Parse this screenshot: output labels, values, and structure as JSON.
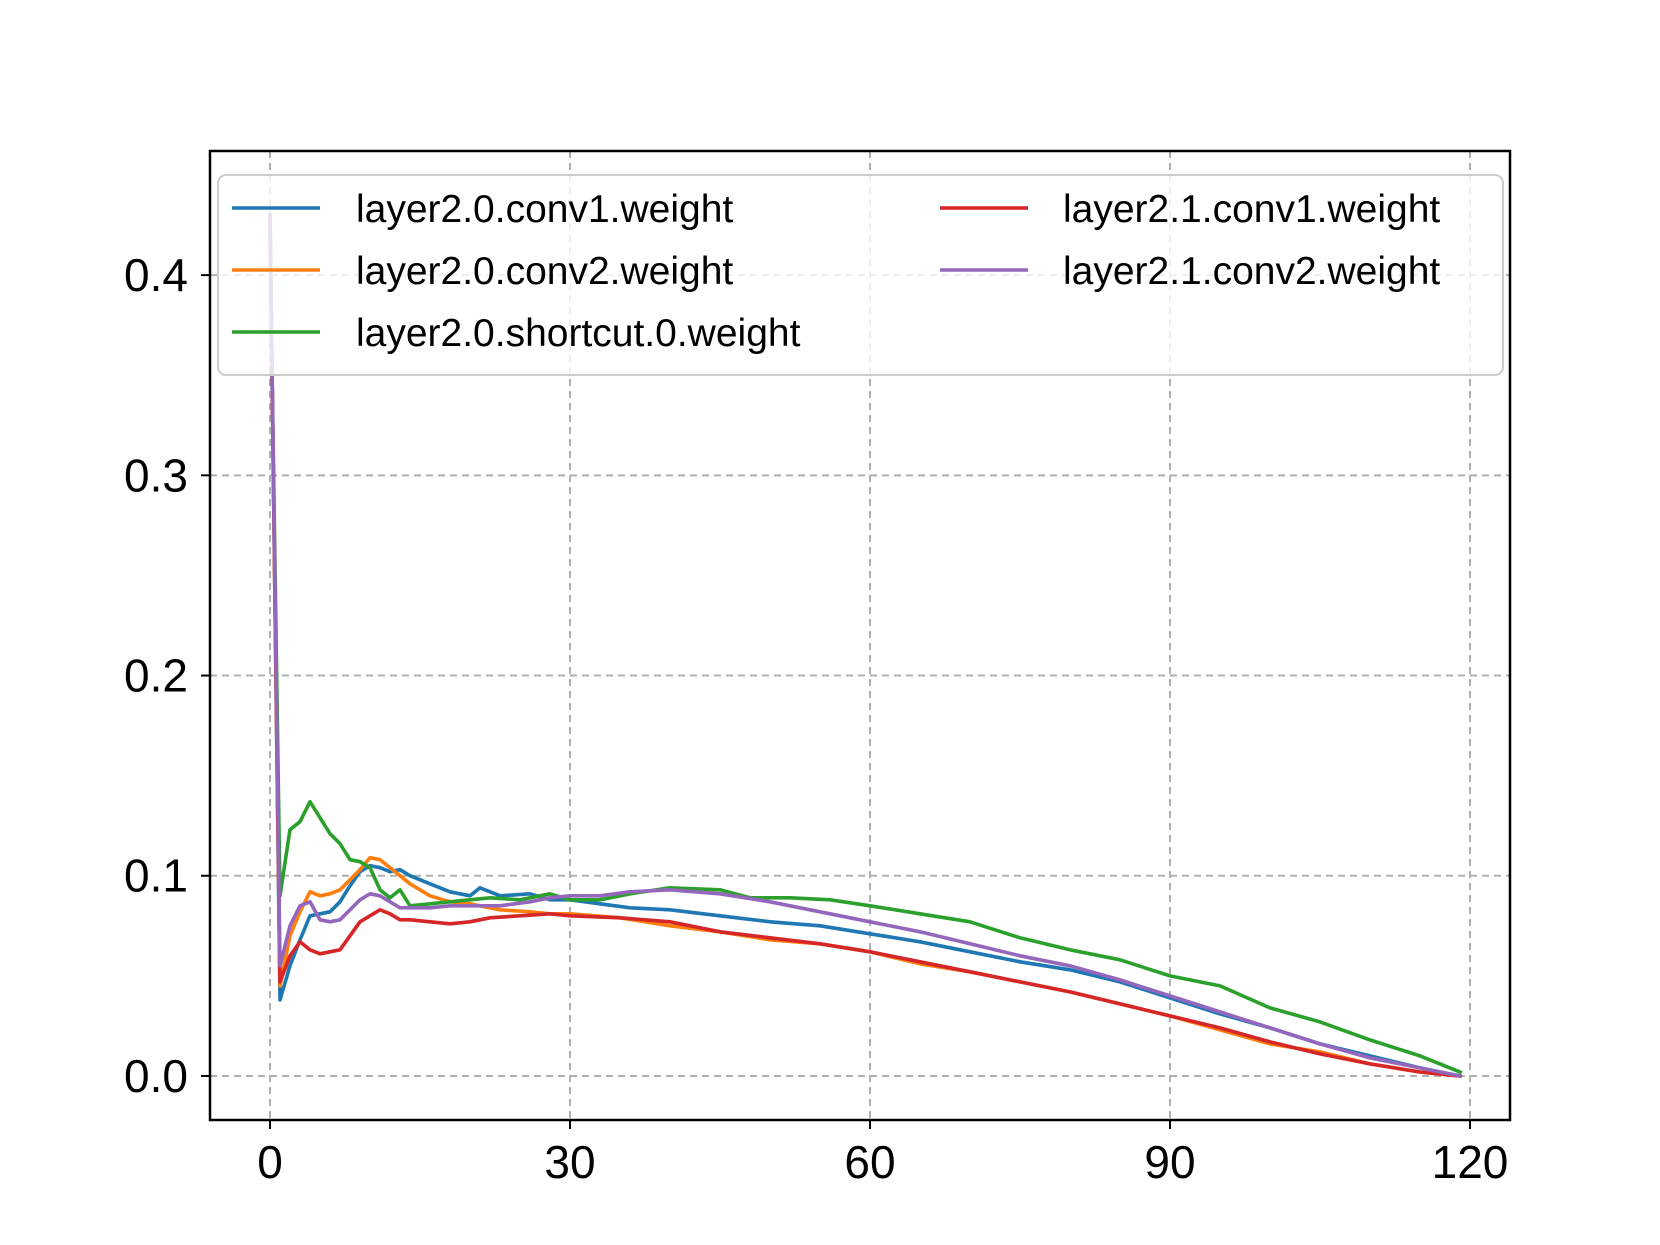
{
  "chart_data": {
    "type": "line",
    "title": "",
    "xlabel": "",
    "ylabel": "",
    "xlim": [
      -6,
      124
    ],
    "ylim": [
      -0.022,
      0.462
    ],
    "grid": true,
    "grid_style": "dashed",
    "legend_position": "top",
    "legend_columns": 2,
    "xticks": [
      0,
      30,
      60,
      90,
      120
    ],
    "xtick_labels": [
      "0",
      "30",
      "60",
      "90",
      "120"
    ],
    "yticks": [
      0.0,
      0.1,
      0.2,
      0.3,
      0.4
    ],
    "ytick_labels": [
      "0.0",
      "0.1",
      "0.2",
      "0.3",
      "0.4"
    ],
    "series": [
      {
        "name": "layer2.0.conv1.weight",
        "color": "#1f77b4",
        "points": [
          [
            0,
            0.43
          ],
          [
            1,
            0.038
          ],
          [
            2,
            0.055
          ],
          [
            3,
            0.068
          ],
          [
            4,
            0.08
          ],
          [
            5,
            0.081
          ],
          [
            6,
            0.082
          ],
          [
            7,
            0.087
          ],
          [
            8,
            0.095
          ],
          [
            9,
            0.102
          ],
          [
            10,
            0.105
          ],
          [
            11,
            0.104
          ],
          [
            12,
            0.102
          ],
          [
            13,
            0.103
          ],
          [
            14,
            0.1
          ],
          [
            16,
            0.096
          ],
          [
            18,
            0.092
          ],
          [
            20,
            0.09
          ],
          [
            21,
            0.094
          ],
          [
            23,
            0.09
          ],
          [
            26,
            0.091
          ],
          [
            28,
            0.088
          ],
          [
            30,
            0.088
          ],
          [
            33,
            0.086
          ],
          [
            36,
            0.084
          ],
          [
            40,
            0.083
          ],
          [
            45,
            0.08
          ],
          [
            50,
            0.077
          ],
          [
            55,
            0.075
          ],
          [
            60,
            0.071
          ],
          [
            65,
            0.067
          ],
          [
            70,
            0.062
          ],
          [
            75,
            0.057
          ],
          [
            80,
            0.053
          ],
          [
            85,
            0.047
          ],
          [
            90,
            0.039
          ],
          [
            95,
            0.031
          ],
          [
            100,
            0.024
          ],
          [
            105,
            0.016
          ],
          [
            110,
            0.01
          ],
          [
            115,
            0.004
          ],
          [
            119,
            0.0
          ]
        ]
      },
      {
        "name": "layer2.0.conv2.weight",
        "color": "#ff7f0e",
        "points": [
          [
            0,
            0.43
          ],
          [
            1,
            0.045
          ],
          [
            2,
            0.07
          ],
          [
            3,
            0.082
          ],
          [
            4,
            0.092
          ],
          [
            5,
            0.09
          ],
          [
            6,
            0.091
          ],
          [
            7,
            0.093
          ],
          [
            8,
            0.098
          ],
          [
            9,
            0.103
          ],
          [
            10,
            0.109
          ],
          [
            11,
            0.108
          ],
          [
            12,
            0.104
          ],
          [
            13,
            0.1
          ],
          [
            14,
            0.096
          ],
          [
            16,
            0.09
          ],
          [
            18,
            0.087
          ],
          [
            20,
            0.086
          ],
          [
            23,
            0.083
          ],
          [
            26,
            0.082
          ],
          [
            28,
            0.081
          ],
          [
            30,
            0.081
          ],
          [
            35,
            0.079
          ],
          [
            40,
            0.075
          ],
          [
            45,
            0.072
          ],
          [
            50,
            0.068
          ],
          [
            55,
            0.066
          ],
          [
            60,
            0.062
          ],
          [
            65,
            0.056
          ],
          [
            70,
            0.052
          ],
          [
            75,
            0.047
          ],
          [
            80,
            0.042
          ],
          [
            85,
            0.036
          ],
          [
            90,
            0.03
          ],
          [
            95,
            0.023
          ],
          [
            100,
            0.016
          ],
          [
            105,
            0.012
          ],
          [
            110,
            0.006
          ],
          [
            115,
            0.002
          ],
          [
            119,
            0.0
          ]
        ]
      },
      {
        "name": "layer2.0.shortcut.0.weight",
        "color": "#2ca02c",
        "points": [
          [
            0,
            0.42
          ],
          [
            1,
            0.09
          ],
          [
            2,
            0.123
          ],
          [
            3,
            0.127
          ],
          [
            4,
            0.137
          ],
          [
            5,
            0.129
          ],
          [
            6,
            0.121
          ],
          [
            7,
            0.116
          ],
          [
            8,
            0.108
          ],
          [
            9,
            0.107
          ],
          [
            10,
            0.104
          ],
          [
            11,
            0.093
          ],
          [
            12,
            0.089
          ],
          [
            13,
            0.093
          ],
          [
            14,
            0.085
          ],
          [
            16,
            0.086
          ],
          [
            18,
            0.087
          ],
          [
            20,
            0.088
          ],
          [
            22,
            0.089
          ],
          [
            25,
            0.088
          ],
          [
            28,
            0.091
          ],
          [
            30,
            0.088
          ],
          [
            33,
            0.088
          ],
          [
            36,
            0.091
          ],
          [
            40,
            0.094
          ],
          [
            45,
            0.093
          ],
          [
            48,
            0.089
          ],
          [
            52,
            0.089
          ],
          [
            56,
            0.088
          ],
          [
            60,
            0.085
          ],
          [
            65,
            0.081
          ],
          [
            70,
            0.077
          ],
          [
            75,
            0.069
          ],
          [
            80,
            0.063
          ],
          [
            85,
            0.058
          ],
          [
            90,
            0.05
          ],
          [
            95,
            0.045
          ],
          [
            100,
            0.034
          ],
          [
            105,
            0.027
          ],
          [
            110,
            0.018
          ],
          [
            115,
            0.01
          ],
          [
            119,
            0.002
          ]
        ]
      },
      {
        "name": "layer2.1.conv1.weight",
        "color": "#d62728",
        "points": [
          [
            0,
            0.43
          ],
          [
            1,
            0.047
          ],
          [
            2,
            0.06
          ],
          [
            3,
            0.067
          ],
          [
            4,
            0.063
          ],
          [
            5,
            0.061
          ],
          [
            6,
            0.062
          ],
          [
            7,
            0.063
          ],
          [
            8,
            0.07
          ],
          [
            9,
            0.077
          ],
          [
            10,
            0.08
          ],
          [
            11,
            0.083
          ],
          [
            12,
            0.081
          ],
          [
            13,
            0.078
          ],
          [
            14,
            0.078
          ],
          [
            16,
            0.077
          ],
          [
            18,
            0.076
          ],
          [
            20,
            0.077
          ],
          [
            22,
            0.079
          ],
          [
            25,
            0.08
          ],
          [
            28,
            0.081
          ],
          [
            30,
            0.08
          ],
          [
            35,
            0.079
          ],
          [
            40,
            0.077
          ],
          [
            45,
            0.072
          ],
          [
            50,
            0.069
          ],
          [
            55,
            0.066
          ],
          [
            60,
            0.062
          ],
          [
            65,
            0.057
          ],
          [
            70,
            0.052
          ],
          [
            75,
            0.047
          ],
          [
            80,
            0.042
          ],
          [
            85,
            0.036
          ],
          [
            90,
            0.03
          ],
          [
            95,
            0.024
          ],
          [
            100,
            0.017
          ],
          [
            105,
            0.011
          ],
          [
            110,
            0.006
          ],
          [
            115,
            0.002
          ],
          [
            119,
            0.0
          ]
        ]
      },
      {
        "name": "layer2.1.conv2.weight",
        "color": "#9467bd",
        "points": [
          [
            0,
            0.43
          ],
          [
            1,
            0.055
          ],
          [
            2,
            0.075
          ],
          [
            3,
            0.085
          ],
          [
            4,
            0.087
          ],
          [
            5,
            0.078
          ],
          [
            6,
            0.077
          ],
          [
            7,
            0.078
          ],
          [
            8,
            0.083
          ],
          [
            9,
            0.088
          ],
          [
            10,
            0.091
          ],
          [
            11,
            0.09
          ],
          [
            12,
            0.087
          ],
          [
            13,
            0.084
          ],
          [
            14,
            0.084
          ],
          [
            16,
            0.084
          ],
          [
            18,
            0.085
          ],
          [
            20,
            0.085
          ],
          [
            23,
            0.085
          ],
          [
            26,
            0.087
          ],
          [
            28,
            0.089
          ],
          [
            30,
            0.09
          ],
          [
            33,
            0.09
          ],
          [
            36,
            0.092
          ],
          [
            40,
            0.093
          ],
          [
            45,
            0.091
          ],
          [
            50,
            0.087
          ],
          [
            55,
            0.082
          ],
          [
            60,
            0.077
          ],
          [
            65,
            0.072
          ],
          [
            70,
            0.066
          ],
          [
            75,
            0.06
          ],
          [
            80,
            0.055
          ],
          [
            85,
            0.048
          ],
          [
            90,
            0.04
          ],
          [
            95,
            0.032
          ],
          [
            100,
            0.024
          ],
          [
            105,
            0.016
          ],
          [
            110,
            0.009
          ],
          [
            115,
            0.004
          ],
          [
            119,
            0.0
          ]
        ]
      }
    ]
  }
}
